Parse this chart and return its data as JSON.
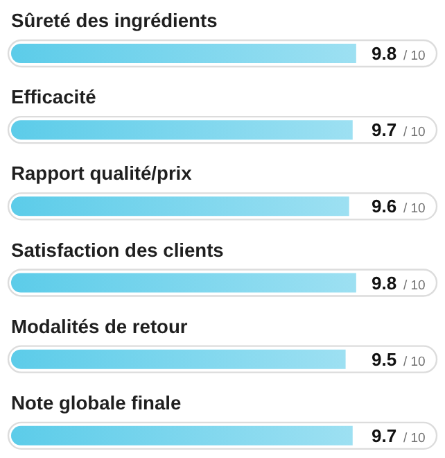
{
  "chart_data": {
    "type": "bar",
    "orientation": "horizontal",
    "categories": [
      "Sûreté des ingrédients",
      "Efficacité",
      "Rapport qualité/prix",
      "Satisfaction des clients",
      "Modalités de retour",
      "Note globale finale"
    ],
    "values": [
      9.8,
      9.7,
      9.6,
      9.8,
      9.5,
      9.7
    ],
    "data_labels": true,
    "annotations": [
      "/ 10",
      "/ 10",
      "/ 10",
      "/ 10",
      "/ 10",
      "/ 10"
    ],
    "color": "#5ccce9",
    "tick_labels": "y"
  }
}
